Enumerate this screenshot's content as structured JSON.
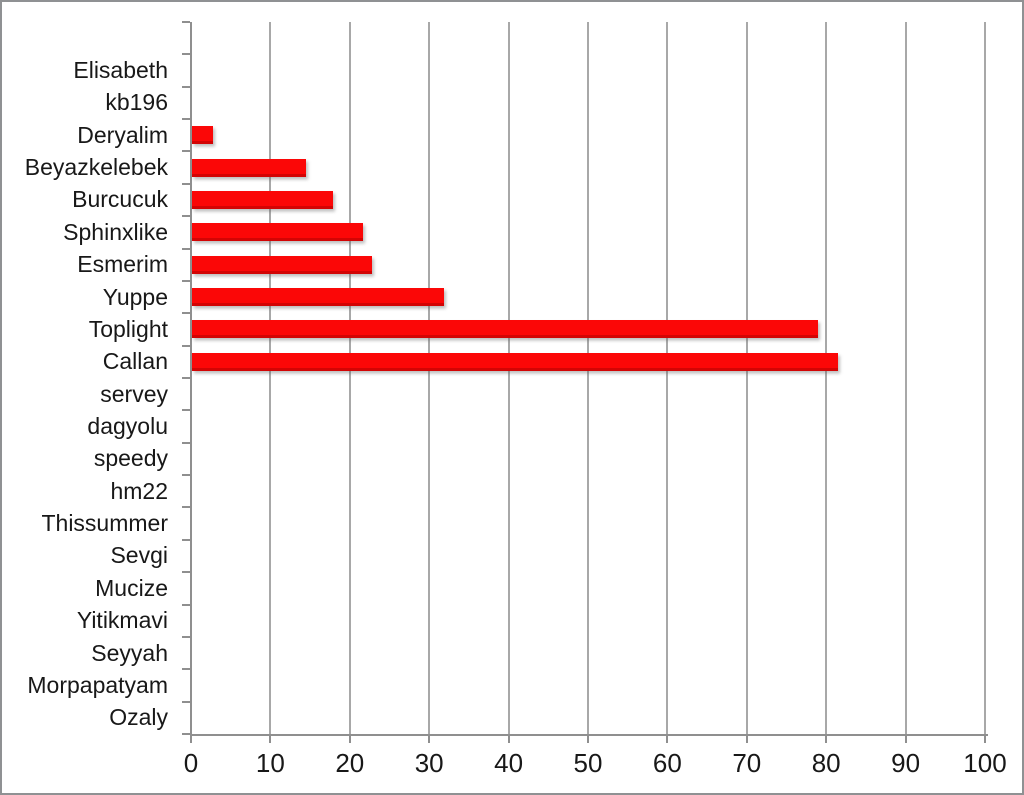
{
  "chart_data": {
    "type": "bar",
    "orientation": "horizontal",
    "title": "",
    "subtitle": "",
    "xlabel": "",
    "ylabel": "",
    "categories": [
      "Elisabeth",
      "kb196",
      "Deryalim",
      "Beyazkelebek",
      "Burcucuk",
      "Sphinxlike",
      "Esmerim",
      "Yuppe",
      "Toplight",
      "Callan",
      "servey",
      "dagyolu",
      "speedy",
      "hm22",
      "Thissummer",
      "Sevgi",
      "Mucize",
      "Yitikmavi",
      "Seyyah",
      "Morpapatyam",
      "Ozaly"
    ],
    "values": [
      0,
      0,
      2.6,
      14.4,
      17.7,
      21.5,
      22.7,
      31.7,
      78.8,
      81.4,
      0,
      0,
      0,
      0,
      0,
      0,
      0,
      0,
      0,
      0,
      0
    ],
    "xlim": [
      0,
      100
    ],
    "x_ticks": [
      0,
      10,
      20,
      30,
      40,
      50,
      60,
      70,
      80,
      90,
      100
    ],
    "grid": "vertical-gridlines",
    "legend": "none",
    "empty_top_slot": true
  },
  "colors": {
    "bar": "#fb0707",
    "gridline": "#a8a8a8",
    "axis": "#8f8f8f",
    "text": "#181818",
    "frame_border": "#8f9193",
    "background": "#ffffff"
  }
}
